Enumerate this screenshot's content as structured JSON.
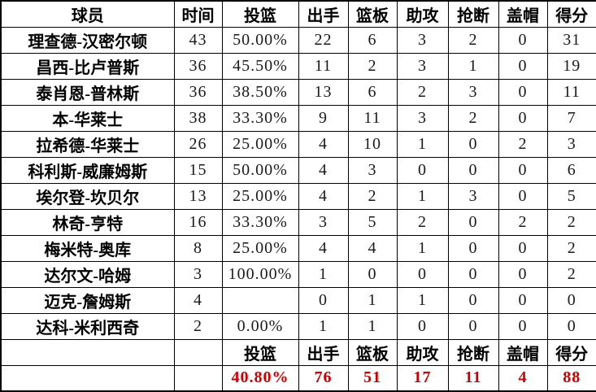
{
  "colors": {
    "totals_text": "#cc0000",
    "border": "#000000",
    "background": "#ffffff",
    "text": "#000000"
  },
  "table": {
    "headers": [
      "球员",
      "时间",
      "投篮",
      "出手",
      "篮板",
      "助攻",
      "抢断",
      "盖帽",
      "得分"
    ],
    "rows": [
      [
        "理查德-汉密尔顿",
        "43",
        "50.00%",
        "22",
        "6",
        "3",
        "2",
        "0",
        "31"
      ],
      [
        "昌西-比卢普斯",
        "36",
        "45.50%",
        "11",
        "2",
        "3",
        "1",
        "0",
        "19"
      ],
      [
        "泰肖恩-普林斯",
        "36",
        "38.50%",
        "13",
        "6",
        "2",
        "3",
        "0",
        "11"
      ],
      [
        "本-华莱士",
        "38",
        "33.30%",
        "9",
        "11",
        "3",
        "2",
        "0",
        "7"
      ],
      [
        "拉希德-华莱士",
        "26",
        "25.00%",
        "4",
        "10",
        "1",
        "0",
        "2",
        "3"
      ],
      [
        "科利斯-威廉姆斯",
        "15",
        "50.00%",
        "4",
        "3",
        "0",
        "0",
        "0",
        "6"
      ],
      [
        "埃尔登-坎贝尔",
        "13",
        "25.00%",
        "4",
        "2",
        "1",
        "3",
        "0",
        "5"
      ],
      [
        "林奇-亨特",
        "16",
        "33.30%",
        "3",
        "5",
        "2",
        "0",
        "2",
        "2"
      ],
      [
        "梅米特-奥库",
        "8",
        "25.00%",
        "4",
        "4",
        "1",
        "0",
        "0",
        "2"
      ],
      [
        "达尔文-哈姆",
        "3",
        "100.00%",
        "1",
        "0",
        "0",
        "0",
        "0",
        "2"
      ],
      [
        "迈克-詹姆斯",
        "4",
        "",
        "0",
        "1",
        "1",
        "0",
        "0",
        "0"
      ],
      [
        "达科-米利西奇",
        "2",
        "0.00%",
        "1",
        "1",
        "0",
        "0",
        "0",
        "0"
      ]
    ],
    "footer_labels": [
      "",
      "",
      "投篮",
      "出手",
      "篮板",
      "助攻",
      "抢断",
      "盖帽",
      "得分"
    ],
    "totals": [
      "",
      "",
      "40.80%",
      "76",
      "51",
      "17",
      "11",
      "4",
      "88"
    ]
  },
  "chart_data": {
    "type": "table",
    "columns": [
      "球员",
      "时间",
      "投篮",
      "出手",
      "篮板",
      "助攻",
      "抢断",
      "盖帽",
      "得分"
    ],
    "rows": [
      {
        "player": "理查德-汉密尔顿",
        "minutes": 43,
        "fg_pct": "50.00%",
        "attempts": 22,
        "rebounds": 6,
        "assists": 3,
        "steals": 2,
        "blocks": 0,
        "points": 31
      },
      {
        "player": "昌西-比卢普斯",
        "minutes": 36,
        "fg_pct": "45.50%",
        "attempts": 11,
        "rebounds": 2,
        "assists": 3,
        "steals": 1,
        "blocks": 0,
        "points": 19
      },
      {
        "player": "泰肖恩-普林斯",
        "minutes": 36,
        "fg_pct": "38.50%",
        "attempts": 13,
        "rebounds": 6,
        "assists": 2,
        "steals": 3,
        "blocks": 0,
        "points": 11
      },
      {
        "player": "本-华莱士",
        "minutes": 38,
        "fg_pct": "33.30%",
        "attempts": 9,
        "rebounds": 11,
        "assists": 3,
        "steals": 2,
        "blocks": 0,
        "points": 7
      },
      {
        "player": "拉希德-华莱士",
        "minutes": 26,
        "fg_pct": "25.00%",
        "attempts": 4,
        "rebounds": 10,
        "assists": 1,
        "steals": 0,
        "blocks": 2,
        "points": 3
      },
      {
        "player": "科利斯-威廉姆斯",
        "minutes": 15,
        "fg_pct": "50.00%",
        "attempts": 4,
        "rebounds": 3,
        "assists": 0,
        "steals": 0,
        "blocks": 0,
        "points": 6
      },
      {
        "player": "埃尔登-坎贝尔",
        "minutes": 13,
        "fg_pct": "25.00%",
        "attempts": 4,
        "rebounds": 2,
        "assists": 1,
        "steals": 3,
        "blocks": 0,
        "points": 5
      },
      {
        "player": "林奇-亨特",
        "minutes": 16,
        "fg_pct": "33.30%",
        "attempts": 3,
        "rebounds": 5,
        "assists": 2,
        "steals": 0,
        "blocks": 2,
        "points": 2
      },
      {
        "player": "梅米特-奥库",
        "minutes": 8,
        "fg_pct": "25.00%",
        "attempts": 4,
        "rebounds": 4,
        "assists": 1,
        "steals": 0,
        "blocks": 0,
        "points": 2
      },
      {
        "player": "达尔文-哈姆",
        "minutes": 3,
        "fg_pct": "100.00%",
        "attempts": 1,
        "rebounds": 0,
        "assists": 0,
        "steals": 0,
        "blocks": 0,
        "points": 2
      },
      {
        "player": "迈克-詹姆斯",
        "minutes": 4,
        "fg_pct": null,
        "attempts": 0,
        "rebounds": 1,
        "assists": 1,
        "steals": 0,
        "blocks": 0,
        "points": 0
      },
      {
        "player": "达科-米利西奇",
        "minutes": 2,
        "fg_pct": "0.00%",
        "attempts": 1,
        "rebounds": 1,
        "assists": 0,
        "steals": 0,
        "blocks": 0,
        "points": 0
      }
    ],
    "totals": {
      "fg_pct": "40.80%",
      "attempts": 76,
      "rebounds": 51,
      "assists": 17,
      "steals": 11,
      "blocks": 4,
      "points": 88
    }
  }
}
